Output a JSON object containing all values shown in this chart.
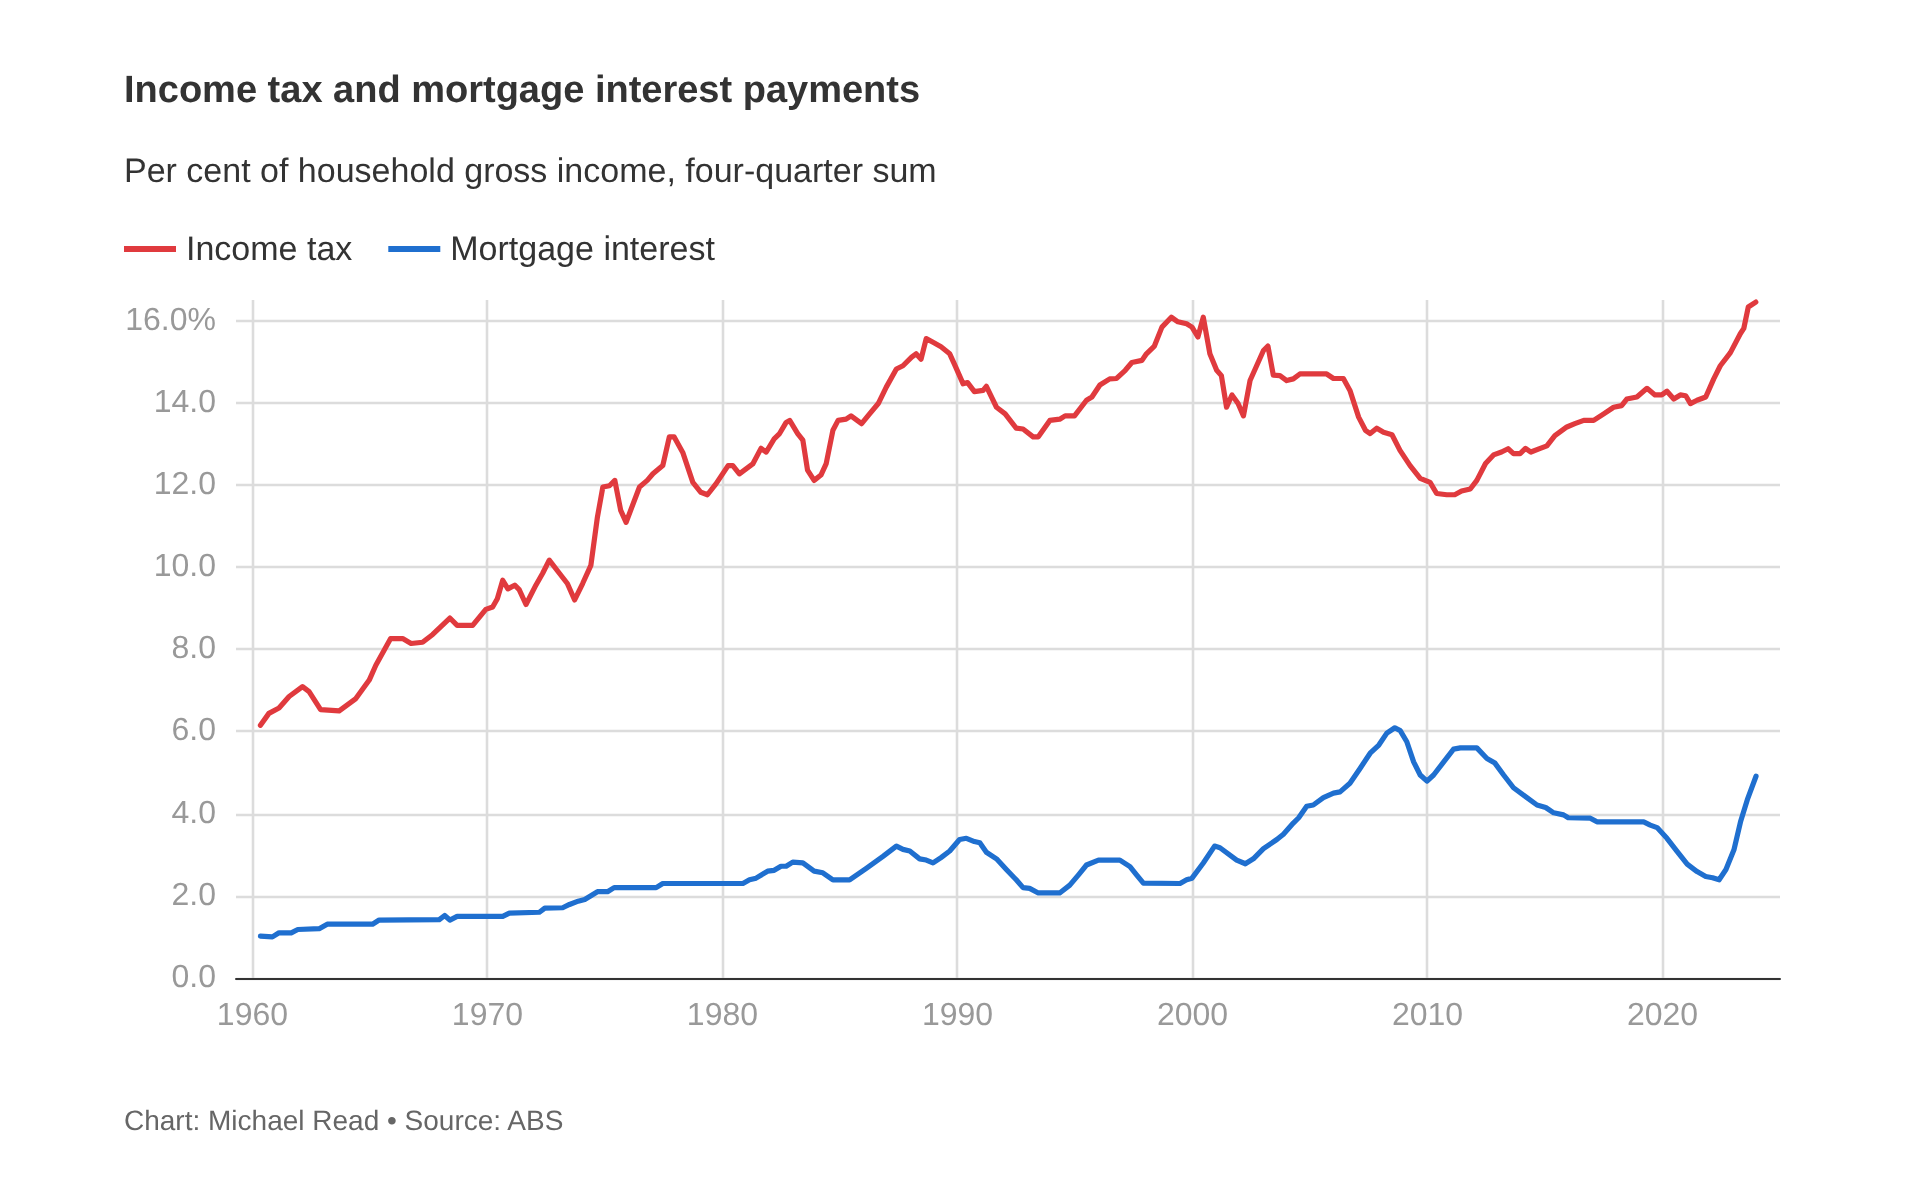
{
  "chart_data": {
    "type": "line",
    "title": "Income tax and mortgage interest payments",
    "subtitle": "Per cent of household gross income, four-quarter sum",
    "annotations": [
      "Chart: Michael Read • Source: ABS"
    ],
    "legend": "top left",
    "grid": true,
    "xlim": [
      1959.3,
      2025
    ],
    "xticks": [
      1960,
      1970,
      1980,
      1990,
      2000,
      2010,
      2020
    ],
    "ylim": [
      0,
      16.5
    ],
    "yticks": [
      {
        "value": 0,
        "label": "0.0"
      },
      {
        "value": 2,
        "label": "2.0"
      },
      {
        "value": 4,
        "label": "4.0"
      },
      {
        "value": 6,
        "label": "6.0"
      },
      {
        "value": 8,
        "label": "8.0"
      },
      {
        "value": 10,
        "label": "10.0"
      },
      {
        "value": 12,
        "label": "12.0"
      },
      {
        "value": 14,
        "label": "14.0"
      },
      {
        "value": 16,
        "label": "16.0%"
      }
    ],
    "series": [
      {
        "name": "Income tax",
        "color": "#e03a3e",
        "x": [
          1960.34,
          1960.7,
          1961.13,
          1961.56,
          1962.13,
          1962.41,
          1962.9,
          1963.69,
          1964.4,
          1964.97,
          1965.25,
          1965.88,
          1966.39,
          1966.75,
          1967.24,
          1967.67,
          1968.4,
          1968.71,
          1969.37,
          1969.93,
          1970.22,
          1970.42,
          1970.65,
          1970.87,
          1971.16,
          1971.35,
          1971.64,
          1972.06,
          1972.35,
          1972.63,
          1973.06,
          1973.4,
          1973.71,
          1974.05,
          1974.4,
          1974.68,
          1974.91,
          1975.19,
          1975.42,
          1975.67,
          1975.9,
          1976.47,
          1976.8,
          1977.04,
          1977.46,
          1977.74,
          1977.94,
          1978.31,
          1978.74,
          1979.08,
          1979.36,
          1979.73,
          1980.24,
          1980.44,
          1980.72,
          1981.29,
          1981.64,
          1981.86,
          1982.2,
          1982.43,
          1982.71,
          1982.86,
          1983.2,
          1983.42,
          1983.62,
          1983.9,
          1984.19,
          1984.41,
          1984.7,
          1984.92,
          1985.26,
          1985.47,
          1985.92,
          1986.26,
          1986.63,
          1986.97,
          1987.4,
          1987.68,
          1988.05,
          1988.24,
          1988.45,
          1988.67,
          1988.96,
          1989.3,
          1989.67,
          1989.86,
          1990.24,
          1990.43,
          1990.72,
          1991.09,
          1991.23,
          1991.66,
          1992.03,
          1992.5,
          1992.79,
          1993.22,
          1993.44,
          1993.93,
          1994.35,
          1994.58,
          1994.98,
          1995.49,
          1995.72,
          1996.06,
          1996.48,
          1996.77,
          1997.14,
          1997.42,
          1997.85,
          1998.04,
          1998.38,
          1998.7,
          1999.1,
          1999.38,
          1999.75,
          1999.98,
          2000.23,
          2000.46,
          2000.74,
          2001.03,
          2001.23,
          2001.45,
          2001.68,
          2001.94,
          2002.17,
          2002.45,
          2002.73,
          2003.02,
          2003.21,
          2003.44,
          2003.72,
          2004.01,
          2004.29,
          2004.57,
          2005.14,
          2005.71,
          2006.0,
          2006.42,
          2006.7,
          2007.07,
          2007.36,
          2007.56,
          2007.84,
          2008.13,
          2008.49,
          2008.83,
          2009.26,
          2009.69,
          2010.11,
          2010.39,
          2010.82,
          2011.16,
          2011.45,
          2011.82,
          2012.1,
          2012.47,
          2012.81,
          2013.15,
          2013.43,
          2013.66,
          2013.94,
          2014.17,
          2014.4,
          2014.8,
          2015.08,
          2015.42,
          2015.93,
          2016.27,
          2016.65,
          2017.07,
          2017.5,
          2017.92,
          2018.26,
          2018.48,
          2018.91,
          2019.34,
          2019.68,
          2019.97,
          2020.19,
          2020.48,
          2020.76,
          2020.99,
          2021.19,
          2021.47,
          2021.84,
          2022.18,
          2022.46,
          2022.89,
          2023.31,
          2023.46,
          2023.65,
          2023.97
        ],
        "values": [
          6.15,
          6.44,
          6.57,
          6.85,
          7.09,
          6.97,
          6.53,
          6.5,
          6.8,
          7.25,
          7.61,
          8.26,
          8.26,
          8.14,
          8.17,
          8.36,
          8.76,
          8.58,
          8.58,
          8.97,
          9.03,
          9.23,
          9.68,
          9.47,
          9.56,
          9.45,
          9.09,
          9.56,
          9.85,
          10.17,
          9.85,
          9.6,
          9.2,
          9.6,
          10.04,
          11.22,
          11.95,
          11.98,
          12.11,
          11.38,
          11.09,
          11.95,
          12.11,
          12.27,
          12.47,
          13.17,
          13.17,
          12.79,
          12.06,
          11.82,
          11.76,
          12.03,
          12.47,
          12.47,
          12.27,
          12.51,
          12.89,
          12.8,
          13.12,
          13.25,
          13.52,
          13.57,
          13.25,
          13.09,
          12.36,
          12.11,
          12.24,
          12.51,
          13.33,
          13.57,
          13.6,
          13.68,
          13.49,
          13.73,
          13.98,
          14.38,
          14.82,
          14.9,
          15.11,
          15.19,
          15.06,
          15.56,
          15.47,
          15.36,
          15.19,
          14.95,
          14.46,
          14.49,
          14.27,
          14.3,
          14.4,
          13.89,
          13.73,
          13.38,
          13.36,
          13.17,
          13.17,
          13.57,
          13.6,
          13.68,
          13.68,
          14.06,
          14.14,
          14.43,
          14.58,
          14.59,
          14.79,
          14.98,
          15.03,
          15.19,
          15.38,
          15.84,
          16.08,
          15.97,
          15.92,
          15.84,
          15.6,
          16.08,
          15.19,
          14.79,
          14.66,
          13.89,
          14.19,
          13.98,
          13.68,
          14.54,
          14.9,
          15.27,
          15.38,
          14.67,
          14.66,
          14.54,
          14.58,
          14.7,
          14.7,
          14.7,
          14.59,
          14.59,
          14.3,
          13.65,
          13.33,
          13.25,
          13.38,
          13.28,
          13.22,
          12.84,
          12.47,
          12.16,
          12.06,
          11.79,
          11.76,
          11.76,
          11.85,
          11.9,
          12.11,
          12.52,
          12.73,
          12.8,
          12.88,
          12.76,
          12.76,
          12.89,
          12.8,
          12.89,
          12.95,
          13.2,
          13.41,
          13.49,
          13.57,
          13.57,
          13.73,
          13.89,
          13.93,
          14.09,
          14.14,
          14.35,
          14.19,
          14.19,
          14.28,
          14.09,
          14.19,
          14.17,
          13.98,
          14.06,
          14.14,
          14.58,
          14.9,
          15.22,
          15.68,
          15.81,
          16.33,
          16.45
        ]
      },
      {
        "name": "Mortgage interest",
        "color": "#1f6fcf",
        "x": [
          1960.34,
          1960.85,
          1961.13,
          1961.65,
          1961.93,
          1962.84,
          1963.18,
          1965.11,
          1965.39,
          1967.95,
          1968.18,
          1968.4,
          1968.71,
          1970.65,
          1970.93,
          1972.21,
          1972.44,
          1973.2,
          1973.49,
          1973.86,
          1974.14,
          1974.68,
          1975.11,
          1975.39,
          1977.18,
          1977.46,
          1980.87,
          1981.15,
          1981.43,
          1981.92,
          1982.2,
          1982.49,
          1982.71,
          1982.99,
          1983.42,
          1983.9,
          1984.27,
          1984.7,
          1985.41,
          1986.12,
          1986.83,
          1987.4,
          1987.68,
          1987.97,
          1988.39,
          1988.67,
          1988.96,
          1989.3,
          1989.67,
          1990.09,
          1990.38,
          1990.72,
          1990.95,
          1991.23,
          1991.66,
          1992.08,
          1992.5,
          1992.79,
          1993.07,
          1993.44,
          1994.35,
          1994.78,
          1995.15,
          1995.49,
          1996.0,
          1996.91,
          1997.34,
          1997.62,
          1997.91,
          1999.47,
          1999.75,
          1999.98,
          2000.46,
          2000.94,
          2001.17,
          2001.88,
          2002.25,
          2002.59,
          2003.02,
          2003.59,
          2003.87,
          2004.29,
          2004.52,
          2004.86,
          2005.14,
          2005.57,
          2006.0,
          2006.28,
          2006.7,
          2007.13,
          2007.56,
          2007.93,
          2008.27,
          2008.61,
          2008.84,
          2009.12,
          2009.41,
          2009.69,
          2009.98,
          2010.26,
          2010.69,
          2011.11,
          2011.4,
          2012.1,
          2012.53,
          2012.87,
          2013.24,
          2013.66,
          2014.23,
          2014.66,
          2015.03,
          2015.37,
          2015.79,
          2015.99,
          2016.93,
          2017.21,
          2019.2,
          2019.48,
          2019.77,
          2020.19,
          2020.62,
          2021.05,
          2021.47,
          2021.84,
          2022.13,
          2022.41,
          2022.7,
          2023.04,
          2023.32,
          2023.61,
          2023.98
        ],
        "values": [
          1.02,
          1.0,
          1.1,
          1.1,
          1.18,
          1.2,
          1.31,
          1.31,
          1.41,
          1.42,
          1.52,
          1.41,
          1.5,
          1.5,
          1.58,
          1.6,
          1.7,
          1.71,
          1.79,
          1.87,
          1.91,
          2.1,
          2.1,
          2.2,
          2.2,
          2.3,
          2.3,
          2.39,
          2.43,
          2.6,
          2.62,
          2.72,
          2.72,
          2.82,
          2.8,
          2.6,
          2.56,
          2.39,
          2.39,
          2.67,
          2.96,
          3.21,
          3.13,
          3.09,
          2.9,
          2.87,
          2.8,
          2.93,
          3.09,
          3.37,
          3.4,
          3.32,
          3.29,
          3.06,
          2.9,
          2.64,
          2.39,
          2.2,
          2.18,
          2.07,
          2.07,
          2.26,
          2.51,
          2.75,
          2.87,
          2.87,
          2.71,
          2.51,
          2.31,
          2.3,
          2.39,
          2.43,
          2.8,
          3.21,
          3.17,
          2.87,
          2.78,
          2.9,
          3.15,
          3.37,
          3.5,
          3.77,
          3.9,
          4.18,
          4.21,
          4.39,
          4.5,
          4.53,
          4.74,
          5.1,
          5.47,
          5.67,
          5.96,
          6.09,
          6.02,
          5.75,
          5.26,
          4.94,
          4.79,
          4.94,
          5.26,
          5.57,
          5.6,
          5.6,
          5.34,
          5.23,
          4.94,
          4.63,
          4.39,
          4.21,
          4.15,
          4.02,
          3.97,
          3.9,
          3.89,
          3.8,
          3.8,
          3.72,
          3.66,
          3.4,
          3.08,
          2.77,
          2.59,
          2.47,
          2.44,
          2.39,
          2.64,
          3.12,
          3.8,
          4.34,
          4.91
        ]
      }
    ]
  }
}
